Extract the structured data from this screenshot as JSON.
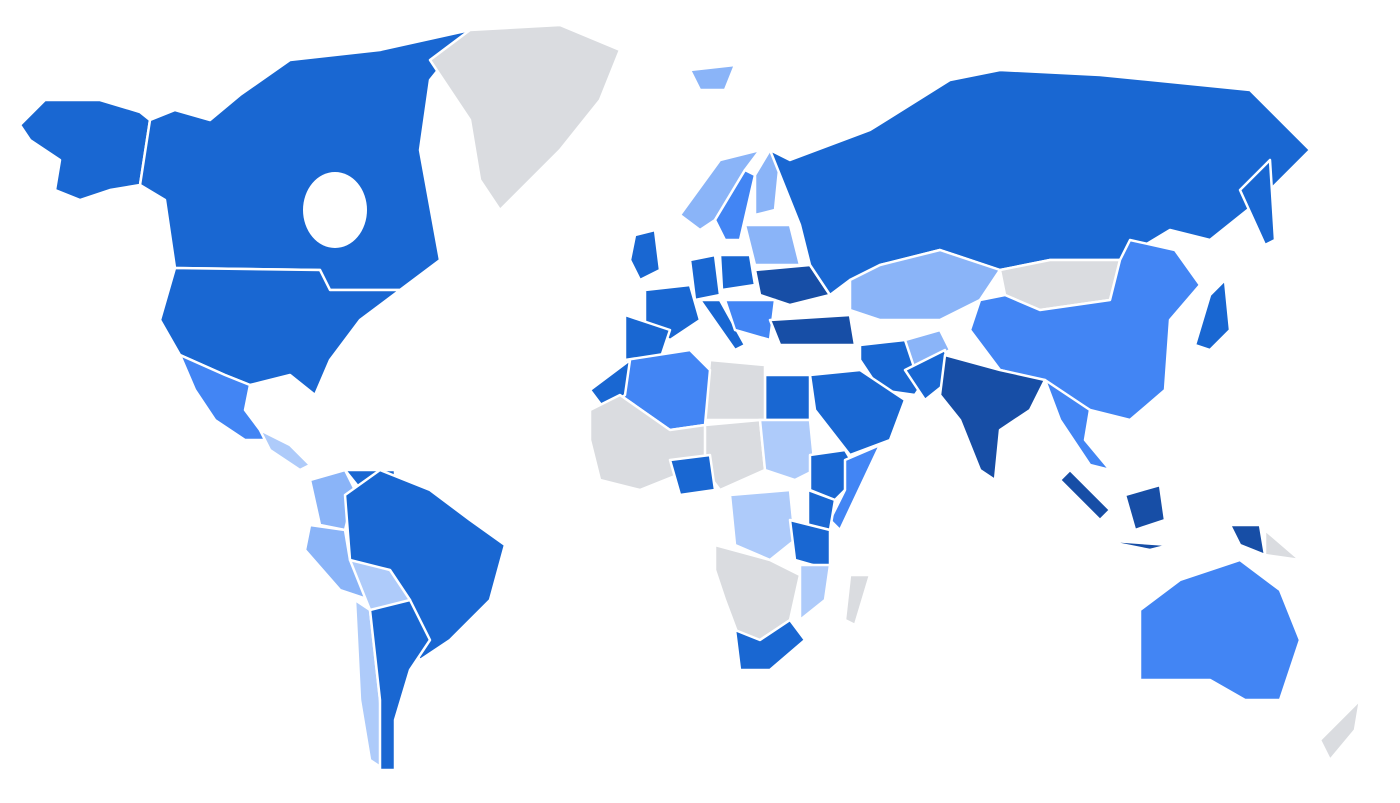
{
  "map": {
    "type": "choropleth",
    "background": "#ffffff",
    "border_color": "#ffffff",
    "palette": {
      "level4": "#174ea6",
      "level3": "#1967d2",
      "level2": "#4285f4",
      "level1": "#8ab4f8",
      "level0": "#aecbfa",
      "no_data": "#dadce0"
    },
    "regions": [
      {
        "id": "alaska",
        "level": "level3"
      },
      {
        "id": "canada",
        "level": "level3"
      },
      {
        "id": "usa",
        "level": "level3"
      },
      {
        "id": "mexico",
        "level": "level2"
      },
      {
        "id": "central-america",
        "level": "level0"
      },
      {
        "id": "greenland",
        "level": "no_data"
      },
      {
        "id": "iceland",
        "level": "level1"
      },
      {
        "id": "colombia",
        "level": "level1"
      },
      {
        "id": "venezuela",
        "level": "level3"
      },
      {
        "id": "brazil",
        "level": "level3"
      },
      {
        "id": "peru",
        "level": "level1"
      },
      {
        "id": "bolivia",
        "level": "level0"
      },
      {
        "id": "chile",
        "level": "level0"
      },
      {
        "id": "argentina",
        "level": "level3"
      },
      {
        "id": "norway",
        "level": "level1"
      },
      {
        "id": "sweden",
        "level": "level2"
      },
      {
        "id": "finland",
        "level": "level1"
      },
      {
        "id": "uk",
        "level": "level3"
      },
      {
        "id": "france",
        "level": "level3"
      },
      {
        "id": "spain",
        "level": "level3"
      },
      {
        "id": "germany",
        "level": "level3"
      },
      {
        "id": "poland",
        "level": "level3"
      },
      {
        "id": "baltics-belarus",
        "level": "level1"
      },
      {
        "id": "ukraine",
        "level": "level4"
      },
      {
        "id": "italy",
        "level": "level3"
      },
      {
        "id": "balkans",
        "level": "level2"
      },
      {
        "id": "russia",
        "level": "level3"
      },
      {
        "id": "kamchatka",
        "level": "level3"
      },
      {
        "id": "kazakhstan",
        "level": "level1"
      },
      {
        "id": "mongolia",
        "level": "no_data"
      },
      {
        "id": "china",
        "level": "level2"
      },
      {
        "id": "turkey",
        "level": "level4"
      },
      {
        "id": "iran",
        "level": "level3"
      },
      {
        "id": "saudi-arabia",
        "level": "level3"
      },
      {
        "id": "egypt",
        "level": "level3"
      },
      {
        "id": "libya",
        "level": "no_data"
      },
      {
        "id": "algeria",
        "level": "level2"
      },
      {
        "id": "morocco",
        "level": "level3"
      },
      {
        "id": "west-africa",
        "level": "no_data"
      },
      {
        "id": "chad-region",
        "level": "no_data"
      },
      {
        "id": "nigeria",
        "level": "level3"
      },
      {
        "id": "sudan",
        "level": "level0"
      },
      {
        "id": "ethiopia",
        "level": "level3"
      },
      {
        "id": "somalia",
        "level": "level2"
      },
      {
        "id": "kenya",
        "level": "level3"
      },
      {
        "id": "dr-congo",
        "level": "level0"
      },
      {
        "id": "tanzania",
        "level": "level3"
      },
      {
        "id": "southern-africa",
        "level": "no_data"
      },
      {
        "id": "mozambique",
        "level": "level0"
      },
      {
        "id": "south-africa",
        "level": "level3"
      },
      {
        "id": "madagascar",
        "level": "no_data"
      },
      {
        "id": "afghanistan",
        "level": "level1"
      },
      {
        "id": "pakistan",
        "level": "level3"
      },
      {
        "id": "india",
        "level": "level4"
      },
      {
        "id": "southeast-asia",
        "level": "level2"
      },
      {
        "id": "sumatra",
        "level": "level4"
      },
      {
        "id": "borneo",
        "level": "level4"
      },
      {
        "id": "java",
        "level": "level4"
      },
      {
        "id": "papua",
        "level": "level4"
      },
      {
        "id": "papua-new-guinea",
        "level": "no_data"
      },
      {
        "id": "japan",
        "level": "level3"
      },
      {
        "id": "australia",
        "level": "level2"
      },
      {
        "id": "new-zealand",
        "level": "no_data"
      }
    ]
  }
}
